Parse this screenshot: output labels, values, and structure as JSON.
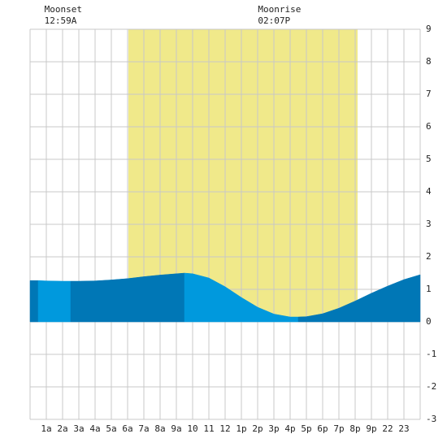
{
  "chart_data": {
    "type": "area",
    "xlim": [
      0,
      24
    ],
    "ylim": [
      -3,
      9
    ],
    "yticks": [
      -3,
      -2,
      -1,
      0,
      1,
      2,
      3,
      4,
      5,
      6,
      7,
      8,
      9
    ],
    "xticks": [
      {
        "value": 1,
        "label": "1a"
      },
      {
        "value": 2,
        "label": "2a"
      },
      {
        "value": 3,
        "label": "3a"
      },
      {
        "value": 4,
        "label": "4a"
      },
      {
        "value": 5,
        "label": "5a"
      },
      {
        "value": 6,
        "label": "6a"
      },
      {
        "value": 7,
        "label": "7a"
      },
      {
        "value": 8,
        "label": "8a"
      },
      {
        "value": 9,
        "label": "9a"
      },
      10,
      11,
      12,
      {
        "value": 13,
        "label": "1p"
      },
      {
        "value": 14,
        "label": "2p"
      },
      {
        "value": 15,
        "label": "3p"
      },
      {
        "value": 16,
        "label": "4p"
      },
      {
        "value": 17,
        "label": "5p"
      },
      {
        "value": 18,
        "label": "6p"
      },
      {
        "value": 19,
        "label": "7p"
      },
      {
        "value": 20,
        "label": "8p"
      },
      {
        "value": 21,
        "label": "9p"
      },
      22,
      23
    ],
    "grid": true,
    "daylight": {
      "range": [
        6.05,
        20.15
      ],
      "color": "#f0e98a"
    },
    "events": [
      {
        "label": "Moonset",
        "time": "12:59A",
        "x": 0.98
      },
      {
        "label": "Moonrise",
        "time": "02:07P",
        "x": 14.12
      }
    ],
    "series": [
      {
        "color": "#0077b6",
        "x": [
          0,
          0.5
        ],
        "values": [
          1.27,
          1.27
        ]
      },
      {
        "color": "#0099dd",
        "x": [
          0.5,
          1,
          2,
          2.5
        ],
        "values": [
          1.27,
          1.26,
          1.25,
          1.25
        ]
      },
      {
        "color": "#0077b6",
        "x": [
          2.5,
          3,
          4,
          5,
          6,
          7,
          8,
          9,
          9.5
        ],
        "values": [
          1.25,
          1.25,
          1.26,
          1.29,
          1.33,
          1.39,
          1.44,
          1.48,
          1.5
        ]
      },
      {
        "color": "#0099dd",
        "x": [
          9.5,
          10,
          11,
          12,
          13,
          14,
          15,
          16,
          16.5
        ],
        "values": [
          1.5,
          1.48,
          1.35,
          1.08,
          0.75,
          0.45,
          0.24,
          0.15,
          0.15
        ]
      },
      {
        "color": "#0077b6",
        "x": [
          16.5,
          17,
          18,
          19,
          20,
          21,
          22,
          23,
          24
        ],
        "values": [
          0.15,
          0.16,
          0.25,
          0.42,
          0.64,
          0.88,
          1.1,
          1.3,
          1.45
        ]
      }
    ]
  }
}
